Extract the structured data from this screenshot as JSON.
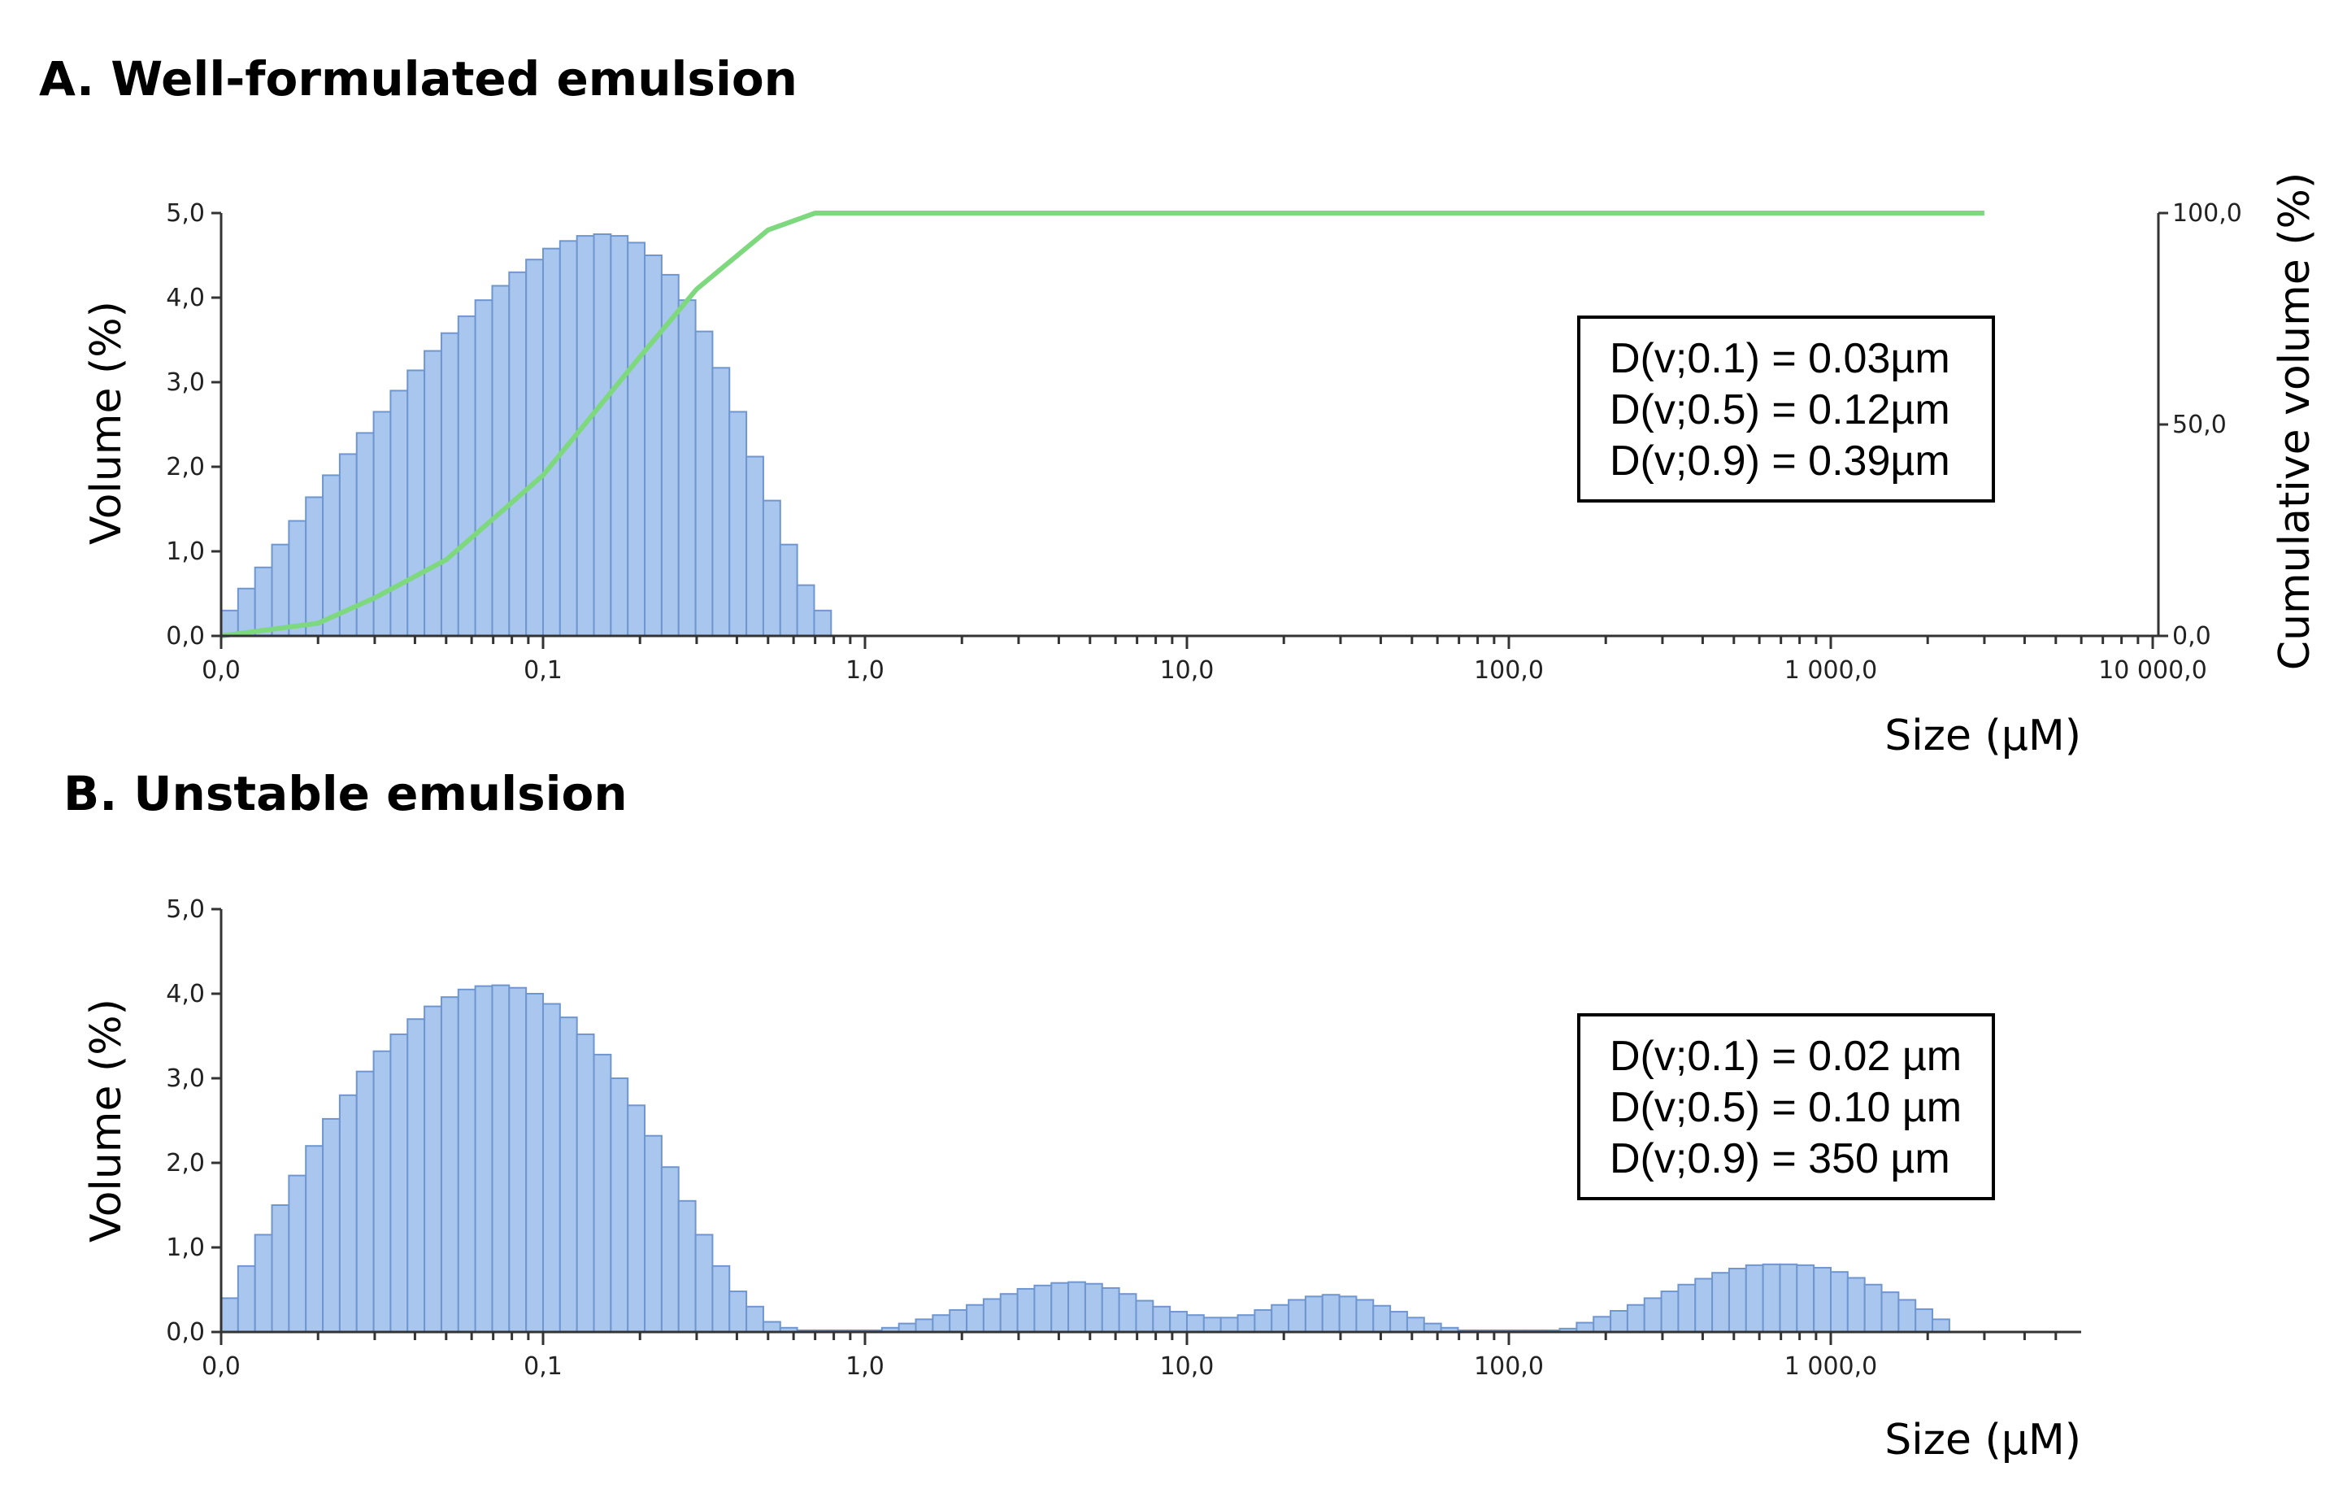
{
  "colors": {
    "bar_fill": "#a8c6ee",
    "bar_stroke": "#6f96cf",
    "cumulative_line": "#7ed87e",
    "axis": "#333333"
  },
  "chart_data": [
    {
      "type": "bar",
      "title": "A. Well-formulated emulsion",
      "xlabel": "Size (µM)",
      "ylabel": "Volume (%)",
      "y2label": "Cumulative volume (%)",
      "x_scale": "log",
      "x_ticks": [
        "0,0",
        "0,1",
        "1,0",
        "10,0",
        "100,0",
        "1 000,0",
        "10 000,0"
      ],
      "y_ticks": [
        "0,0",
        "1,0",
        "2,0",
        "3,0",
        "4,0",
        "5,0"
      ],
      "y2_ticks": [
        "0,0",
        "50,0",
        "100,0"
      ],
      "ylim": [
        0,
        5
      ],
      "y2lim": [
        0,
        100
      ],
      "bins_per_decade": 19,
      "bin_start_exponent": -2,
      "values": [
        0.3,
        0.56,
        0.81,
        1.08,
        1.36,
        1.64,
        1.9,
        2.15,
        2.4,
        2.65,
        2.9,
        3.14,
        3.37,
        3.58,
        3.78,
        3.97,
        4.14,
        4.3,
        4.45,
        4.58,
        4.67,
        4.73,
        4.75,
        4.73,
        4.65,
        4.5,
        4.27,
        3.97,
        3.6,
        3.17,
        2.65,
        2.12,
        1.6,
        1.08,
        0.6,
        0.3,
        0.0
      ],
      "series": [
        {
          "name": "Cumulative volume (%)",
          "x": [
            0.01,
            0.02,
            0.03,
            0.05,
            0.1,
            0.2,
            0.3,
            0.5,
            0.7,
            1.0,
            10,
            100,
            1000,
            3000
          ],
          "y": [
            0,
            3,
            9,
            18,
            38,
            66,
            82,
            96,
            100,
            100,
            100,
            100,
            100,
            100
          ]
        }
      ],
      "annotations": [
        "D(v;0.1) = 0.03µm",
        "D(v;0.5) = 0.12µm",
        "D(v;0.9) = 0.39µm"
      ]
    },
    {
      "type": "bar",
      "title": "B. Unstable emulsion",
      "xlabel": "Size (µM)",
      "ylabel": "Volume (%)",
      "x_scale": "log",
      "x_ticks": [
        "0,0",
        "0,1",
        "1,0",
        "10,0",
        "100,0",
        "1 000,0"
      ],
      "y_ticks": [
        "0,0",
        "1,0",
        "2,0",
        "3,0",
        "4,0",
        "5,0"
      ],
      "ylim": [
        0,
        5
      ],
      "bins_per_decade": 19,
      "bin_start_exponent": -2,
      "values": [
        0.4,
        0.78,
        1.15,
        1.5,
        1.85,
        2.2,
        2.52,
        2.8,
        3.08,
        3.32,
        3.52,
        3.7,
        3.85,
        3.96,
        4.05,
        4.09,
        4.1,
        4.07,
        4.0,
        3.88,
        3.72,
        3.52,
        3.28,
        3.0,
        2.68,
        2.32,
        1.95,
        1.55,
        1.15,
        0.78,
        0.48,
        0.3,
        0.12,
        0.05,
        0.02,
        0.02,
        0.02,
        0.02,
        0.02,
        0.05,
        0.1,
        0.15,
        0.2,
        0.26,
        0.32,
        0.39,
        0.45,
        0.51,
        0.55,
        0.58,
        0.59,
        0.57,
        0.52,
        0.45,
        0.37,
        0.3,
        0.24,
        0.2,
        0.17,
        0.17,
        0.2,
        0.26,
        0.32,
        0.38,
        0.42,
        0.44,
        0.42,
        0.38,
        0.31,
        0.24,
        0.17,
        0.1,
        0.05,
        0.02,
        0.02,
        0.02,
        0.02,
        0.02,
        0.02,
        0.04,
        0.11,
        0.18,
        0.25,
        0.32,
        0.4,
        0.48,
        0.56,
        0.63,
        0.7,
        0.75,
        0.79,
        0.8,
        0.8,
        0.79,
        0.76,
        0.71,
        0.64,
        0.56,
        0.47,
        0.38,
        0.27,
        0.15
      ],
      "annotations": [
        "D(v;0.1) = 0.02 µm",
        "D(v;0.5) = 0.10 µm",
        "D(v;0.9) = 350 µm"
      ]
    }
  ]
}
